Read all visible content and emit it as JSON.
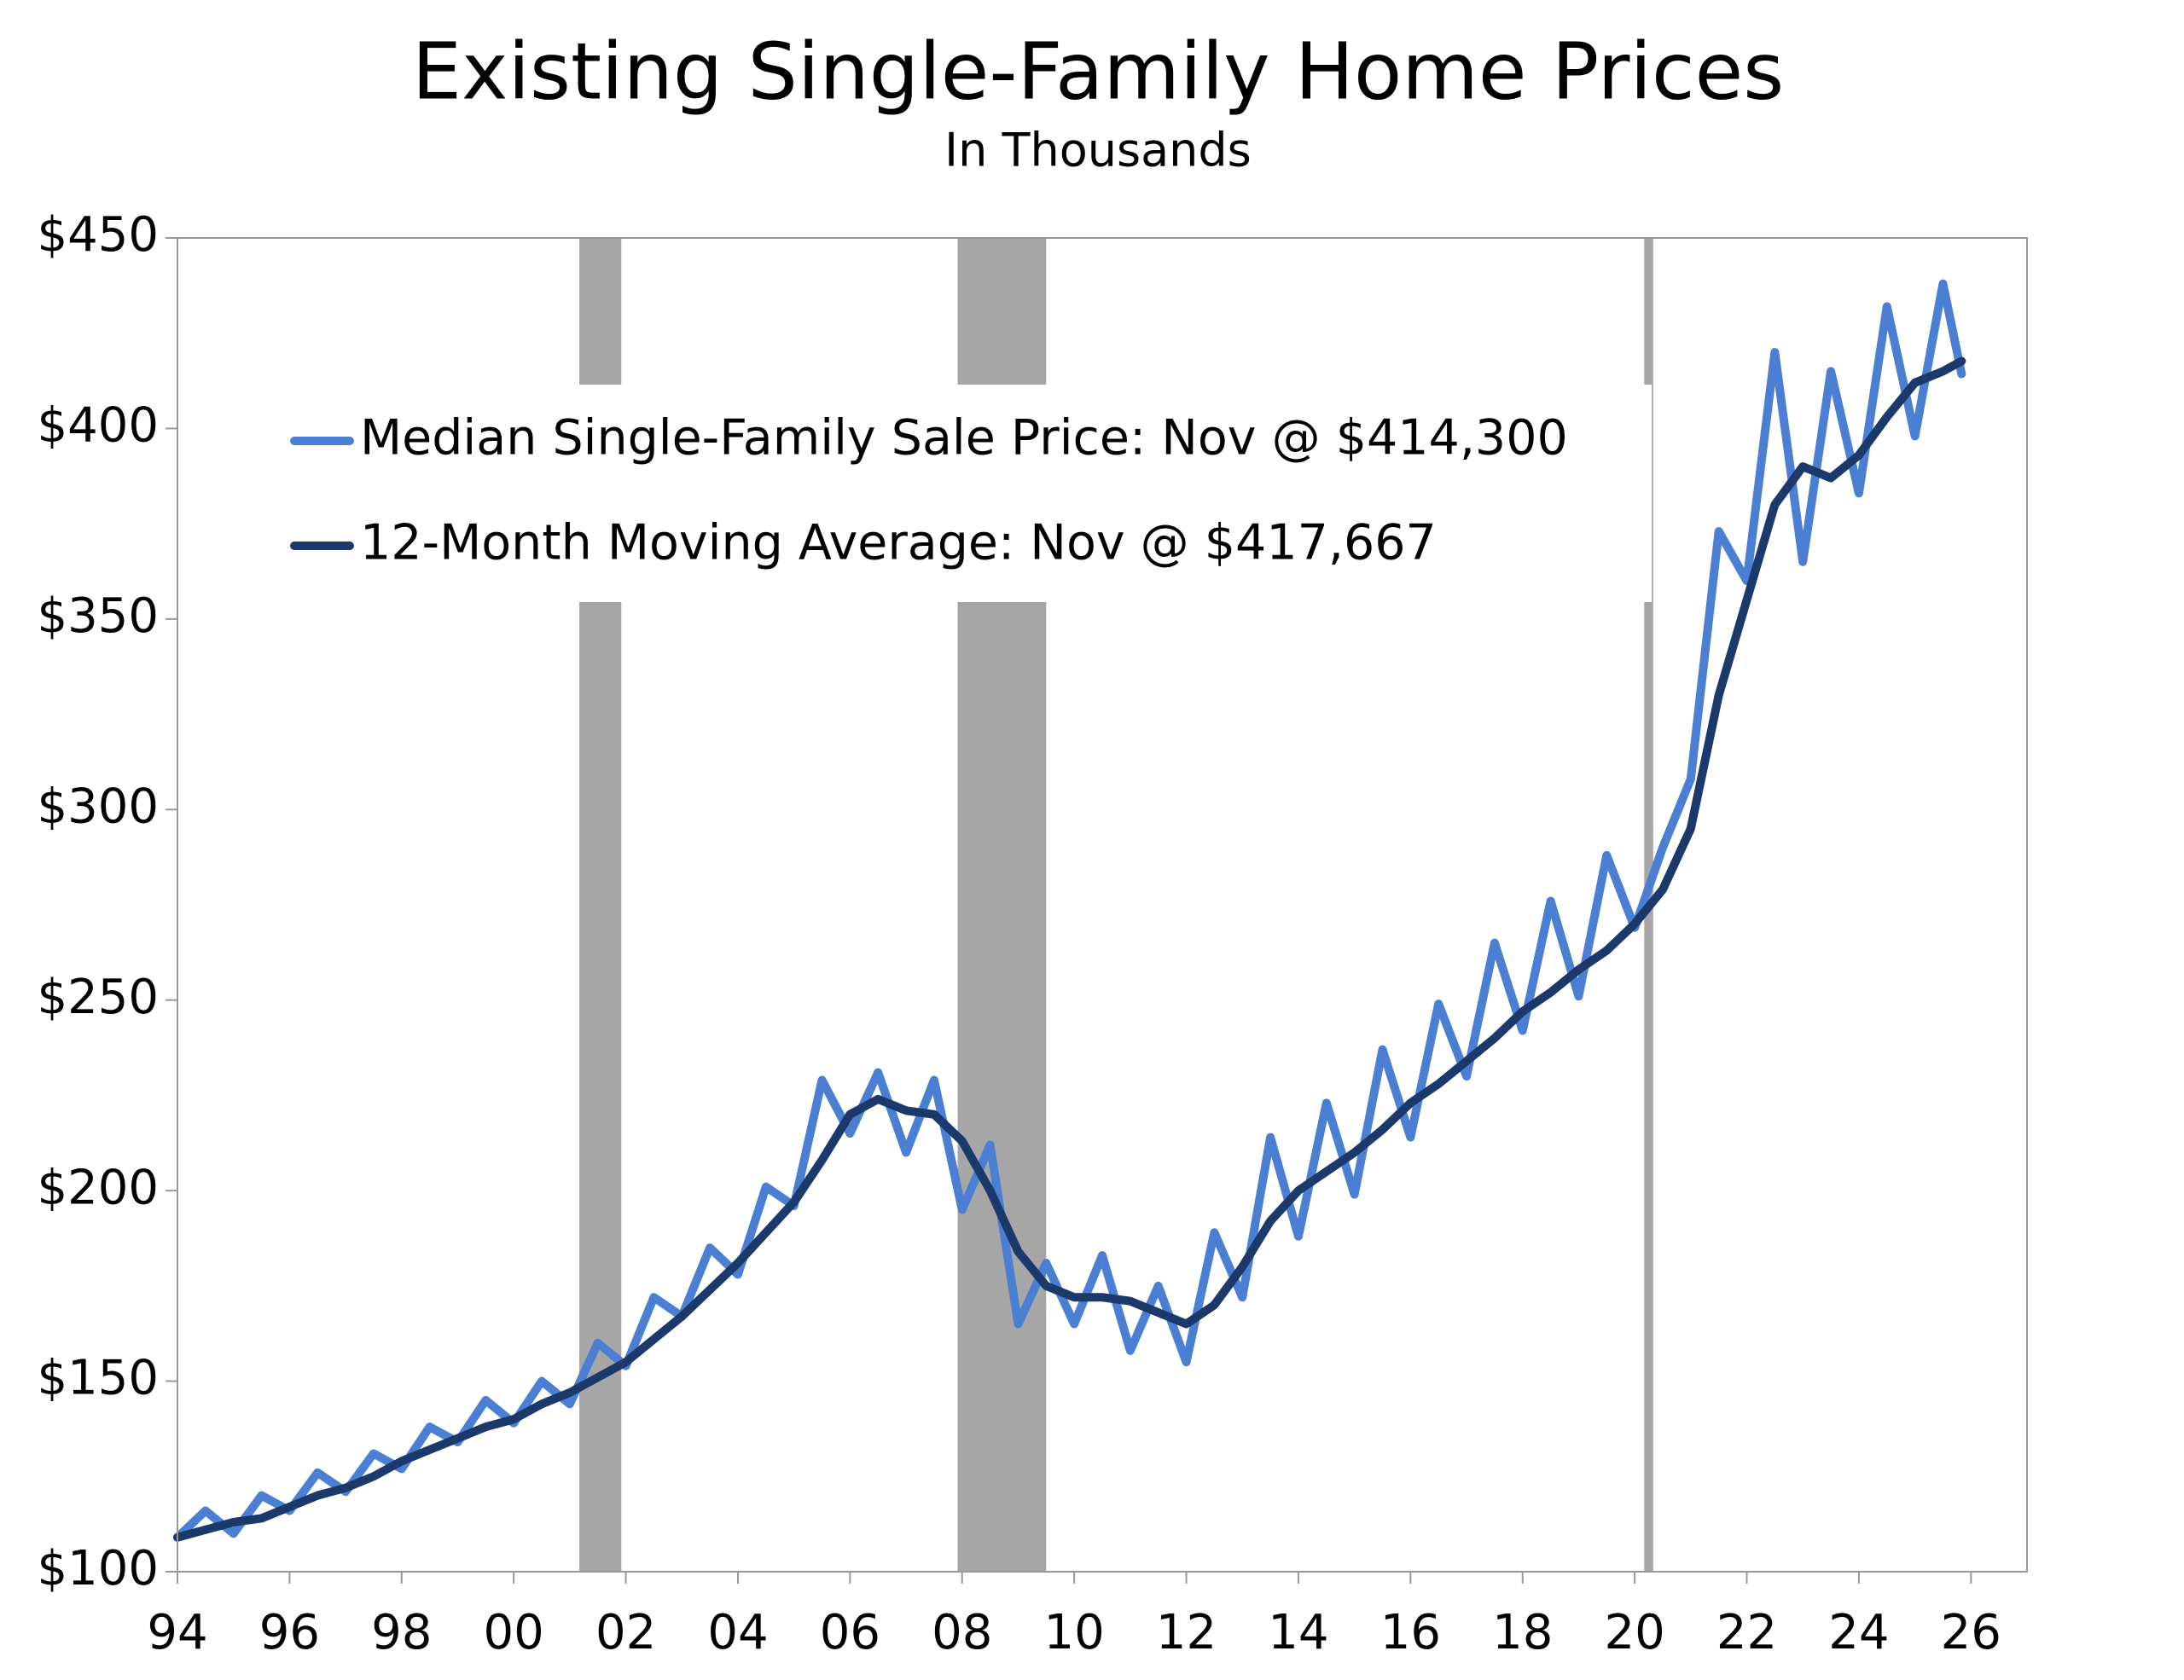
{
  "chart_data": {
    "type": "line",
    "title": "Existing Single-Family Home Prices",
    "subtitle": "In Thousands",
    "xlim": [
      1994,
      2027
    ],
    "xticks": [
      {
        "value": 1994,
        "label": "94"
      },
      {
        "value": 1996,
        "label": "96"
      },
      {
        "value": 1998,
        "label": "98"
      },
      {
        "value": 2000,
        "label": "00"
      },
      {
        "value": 2002,
        "label": "02"
      },
      {
        "value": 2004,
        "label": "04"
      },
      {
        "value": 2006,
        "label": "06"
      },
      {
        "value": 2008,
        "label": "08"
      },
      {
        "value": 2010,
        "label": "10"
      },
      {
        "value": 2012,
        "label": "12"
      },
      {
        "value": 2014,
        "label": "14"
      },
      {
        "value": 2016,
        "label": "16"
      },
      {
        "value": 2018,
        "label": "18"
      },
      {
        "value": 2020,
        "label": "20"
      },
      {
        "value": 2022,
        "label": "22"
      },
      {
        "value": 2024,
        "label": "24"
      },
      {
        "value": 2026,
        "label": "26"
      }
    ],
    "ylim": [
      100,
      450
    ],
    "yticks": [
      {
        "value": 100,
        "label": "$100"
      },
      {
        "value": 150,
        "label": "$150"
      },
      {
        "value": 200,
        "label": "$200"
      },
      {
        "value": 250,
        "label": "$250"
      },
      {
        "value": 300,
        "label": "$300"
      },
      {
        "value": 350,
        "label": "$350"
      },
      {
        "value": 400,
        "label": "$400"
      },
      {
        "value": 450,
        "label": "$450"
      }
    ],
    "shaded_periods": [
      [
        2001.17,
        2001.92
      ],
      [
        2007.92,
        2009.5
      ],
      [
        2020.17,
        2020.33
      ]
    ],
    "shade_color": "#a6a6a6",
    "legend": "upper left",
    "x": [
      1994.0,
      1994.5,
      1995.0,
      1995.5,
      1996.0,
      1996.5,
      1997.0,
      1997.5,
      1998.0,
      1998.5,
      1999.0,
      1999.5,
      2000.0,
      2000.5,
      2001.0,
      2001.5,
      2002.0,
      2002.5,
      2003.0,
      2003.5,
      2004.0,
      2004.5,
      2005.0,
      2005.5,
      2006.0,
      2006.5,
      2007.0,
      2007.5,
      2008.0,
      2008.5,
      2009.0,
      2009.5,
      2010.0,
      2010.5,
      2011.0,
      2011.5,
      2012.0,
      2012.5,
      2013.0,
      2013.5,
      2014.0,
      2014.5,
      2015.0,
      2015.5,
      2016.0,
      2016.5,
      2017.0,
      2017.5,
      2018.0,
      2018.5,
      2019.0,
      2019.5,
      2020.0,
      2020.5,
      2021.0,
      2021.5,
      2022.0,
      2022.5,
      2023.0,
      2023.5,
      2024.0,
      2024.5,
      2025.0,
      2025.5,
      2025.833
    ],
    "series": [
      {
        "name": "Median Single-Family Sale Price: Nov @ $414,300",
        "color": "#4a7fd4",
        "width": 10,
        "values": [
          109,
          116,
          110,
          120,
          116,
          126,
          121,
          131,
          127,
          138,
          134,
          145,
          139,
          150,
          144,
          160,
          154,
          172,
          167,
          185,
          178,
          201,
          196,
          229,
          215,
          231,
          210,
          229,
          195,
          212,
          165,
          181,
          165,
          183,
          158,
          175,
          155,
          189,
          172,
          214,
          188,
          223,
          199,
          237,
          214,
          249,
          230,
          265,
          242,
          276,
          251,
          288,
          269,
          290,
          308,
          373,
          360,
          420,
          365,
          415,
          383,
          432,
          398,
          438,
          414.3
        ]
      },
      {
        "name": "12-Month Moving Average: Nov @ $417,667",
        "color": "#1b3a6b",
        "width": 10,
        "values": [
          109,
          111,
          113,
          114,
          117,
          120,
          122,
          125,
          129,
          132,
          135,
          138,
          140,
          144,
          147,
          151,
          155,
          161,
          167,
          174,
          181,
          189,
          197,
          208,
          220,
          224,
          221,
          220,
          213,
          200,
          184,
          175,
          172,
          172,
          171,
          168,
          165,
          170,
          180,
          192,
          200,
          205,
          210,
          216,
          223,
          228,
          234,
          240,
          247,
          252,
          258,
          263,
          270,
          279,
          295,
          330,
          355,
          380,
          390,
          387,
          393,
          403,
          412,
          415,
          417.667
        ]
      }
    ]
  }
}
